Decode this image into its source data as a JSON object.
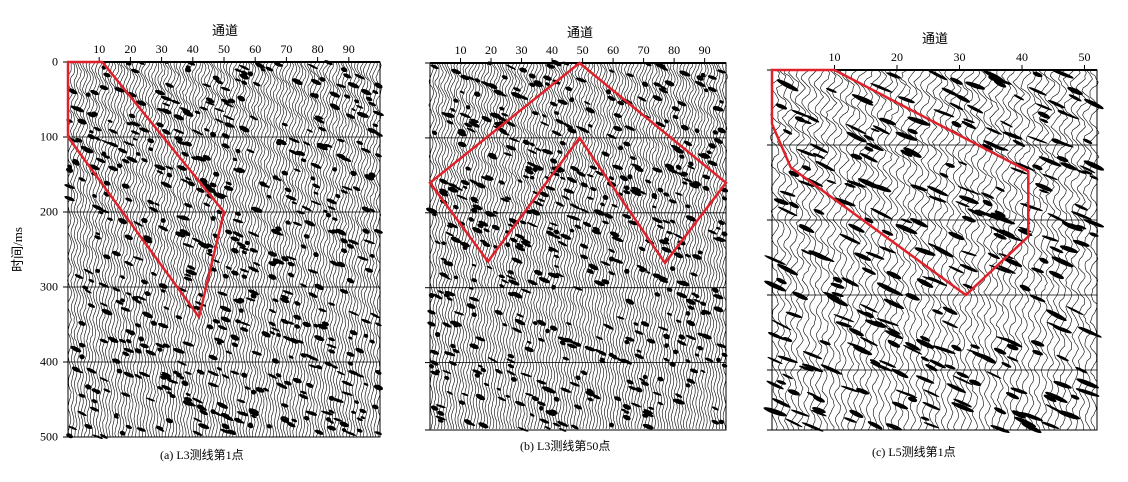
{
  "axis_title_x": "通道",
  "axis_title_y": "时间/ms",
  "y_ticks": [
    "0",
    "100",
    "200",
    "300",
    "400",
    "500"
  ],
  "panels": [
    {
      "caption": "(a) L3测线第1点",
      "x_ticks": [
        "10",
        "20",
        "30",
        "40",
        "50",
        "60",
        "70",
        "80",
        "90"
      ],
      "channels": 100,
      "time_max_ms": 500,
      "polygon": [
        [
          0,
          0
        ],
        [
          11,
          0
        ],
        [
          50,
          200
        ],
        [
          42,
          340
        ],
        [
          0,
          100
        ]
      ],
      "event_slope": 4.0
    },
    {
      "caption": "(b) L3测线第50点",
      "x_ticks": [
        "10",
        "20",
        "30",
        "40",
        "50",
        "60",
        "70",
        "80",
        "90"
      ],
      "channels": 97,
      "time_max_ms": 490,
      "polygon": [
        [
          49,
          0
        ],
        [
          97,
          160
        ],
        [
          77,
          267
        ],
        [
          49,
          100
        ],
        [
          19,
          265
        ],
        [
          0,
          160
        ]
      ],
      "event_slope": 3.2
    },
    {
      "caption": "(c) L5测线第1点",
      "x_ticks": [
        "10",
        "20",
        "30",
        "40",
        "50"
      ],
      "channels": 52,
      "time_max_ms": 480,
      "polygon": [
        [
          0,
          0
        ],
        [
          10,
          0
        ],
        [
          41,
          135
        ],
        [
          41,
          222
        ],
        [
          31,
          300
        ],
        [
          3,
          130
        ],
        [
          0,
          72
        ]
      ],
      "event_slope": 7.0
    }
  ],
  "colors": {
    "polygon": "#e0202a",
    "trace": "#000000"
  }
}
